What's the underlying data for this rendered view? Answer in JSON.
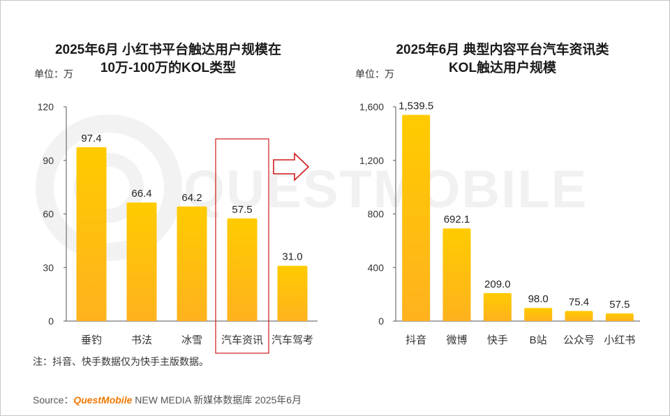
{
  "watermark": "QUESTMOBILE",
  "colors": {
    "bar_top": "#FFCB00",
    "bar_bottom": "#FFB21E",
    "highlight": "#D0191C",
    "brand": "#F07800"
  },
  "note": "注：抖音、快手数据仅为快手主版数据。",
  "source": {
    "label": "Source：",
    "brand": "QuestMobile",
    "rest": " NEW MEDIA 新媒体数据库 2025年6月"
  },
  "chart_data": [
    {
      "type": "bar",
      "title_lines": [
        "2025年6月 小红书平台触达用户规模在",
        "10万-100万的KOL类型"
      ],
      "unit": "单位：万",
      "categories": [
        "垂钓",
        "书法",
        "冰雪",
        "汽车资讯",
        "汽车驾考"
      ],
      "values": [
        97.4,
        66.4,
        64.2,
        57.5,
        31.0
      ],
      "value_labels": [
        "97.4",
        "66.4",
        "64.2",
        "57.5",
        "31.0"
      ],
      "ylim": [
        0,
        120
      ],
      "yticks": [
        0,
        30,
        60,
        90,
        120
      ],
      "ytick_labels": [
        "0",
        "30",
        "60",
        "90",
        "120"
      ],
      "highlight_index": 3
    },
    {
      "type": "bar",
      "title_lines": [
        "2025年6月 典型内容平台汽车资讯类",
        "KOL触达用户规模"
      ],
      "unit": "单位：万",
      "categories": [
        "抖音",
        "微博",
        "快手",
        "B站",
        "公众号",
        "小红书"
      ],
      "values": [
        1539.5,
        692.1,
        209.0,
        98.0,
        75.4,
        57.5
      ],
      "value_labels": [
        "1,539.5",
        "692.1",
        "209.0",
        "98.0",
        "75.4",
        "57.5"
      ],
      "ylim": [
        0,
        1600
      ],
      "yticks": [
        0,
        400,
        800,
        1200,
        1600
      ],
      "ytick_labels": [
        "0",
        "400",
        "800",
        "1,200",
        "1,600"
      ]
    }
  ]
}
